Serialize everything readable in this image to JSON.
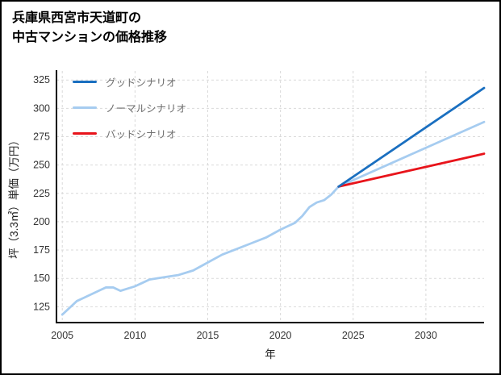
{
  "header": {
    "title_line1": "兵庫県西宮市天道町の",
    "title_line2": "中古マンションの価格推移"
  },
  "chart_data": {
    "type": "line",
    "title": "兵庫県西宮市天道町の中古マンションの価格推移",
    "xlabel": "年",
    "ylabel": "坪（3.3㎡）単価（万円）",
    "xlim": [
      2004.6,
      2034
    ],
    "ylim": [
      111,
      333
    ],
    "xticks": [
      2005,
      2010,
      2015,
      2020,
      2025,
      2030
    ],
    "yticks": [
      125,
      150,
      175,
      200,
      225,
      250,
      275,
      300,
      325
    ],
    "grid": true,
    "grid_color": "#d9d9d9",
    "axis_color": "#000000",
    "legend_position": "top-left",
    "series": [
      {
        "id": "good",
        "name": "グッドシナリオ",
        "color": "#1a6fc0",
        "zorder": 3,
        "in_legend": true,
        "x": [
          2024,
          2034
        ],
        "y": [
          231,
          318
        ]
      },
      {
        "id": "normal",
        "name": "ノーマルシナリオ",
        "color": "#a6ccf0",
        "zorder": 1,
        "in_legend": true,
        "x": [
          2005,
          2005.5,
          2006,
          2006.5,
          2007,
          2007.5,
          2008,
          2008.5,
          2009,
          2009.5,
          2010,
          2010.5,
          2011,
          2012,
          2013,
          2014,
          2015,
          2016,
          2017,
          2018,
          2019,
          2020,
          2020.5,
          2021,
          2021.5,
          2022,
          2022.5,
          2023,
          2023.5,
          2024,
          2034
        ],
        "y": [
          118,
          124,
          130,
          133,
          136,
          139,
          142,
          142,
          139,
          141,
          143,
          146,
          149,
          151,
          153,
          157,
          164,
          171,
          176,
          181,
          186,
          193,
          196,
          199,
          205,
          213,
          217,
          219,
          224,
          231,
          288
        ]
      },
      {
        "id": "bad",
        "name": "バッドシナリオ",
        "color": "#e8141b",
        "zorder": 2,
        "in_legend": true,
        "x": [
          2024,
          2034
        ],
        "y": [
          231,
          260
        ]
      }
    ]
  }
}
